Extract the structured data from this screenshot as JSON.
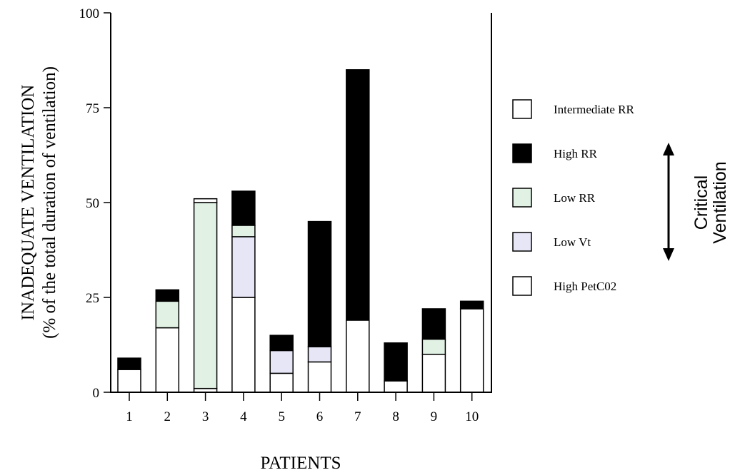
{
  "chart_data": {
    "type": "bar",
    "stacked": true,
    "categories": [
      "1",
      "2",
      "3",
      "4",
      "5",
      "6",
      "7",
      "8",
      "9",
      "10"
    ],
    "ylim": [
      0,
      100
    ],
    "yticks": [
      "0",
      "25",
      "50",
      "75",
      "100"
    ],
    "ylabel_lines": [
      "INADEQUATE VENTILATION",
      "(% of the total  duration of ventilation)"
    ],
    "xlabel": "PATIENTS",
    "grid": false,
    "legend_position": "right",
    "series": [
      {
        "name": "High PetC02",
        "color": "#ffffff",
        "values": [
          6,
          17,
          1,
          25,
          5,
          8,
          19,
          3,
          10,
          22
        ]
      },
      {
        "name": "Low Vt",
        "color": "#e6e6f7",
        "values": [
          0,
          0,
          0,
          16,
          6,
          4,
          0,
          0,
          0,
          0
        ]
      },
      {
        "name": "Low RR",
        "color": "#e1f2e4",
        "values": [
          0,
          7,
          49,
          3,
          0,
          0,
          0,
          0,
          4,
          0
        ]
      },
      {
        "name": "High RR",
        "color": "#000000",
        "values": [
          3,
          3,
          0,
          9,
          4,
          33,
          66,
          10,
          8,
          2
        ]
      },
      {
        "name": "Intermediate RR",
        "color": "#ffffff",
        "values": [
          0,
          0,
          1,
          0,
          0,
          0,
          0,
          0,
          0,
          0
        ]
      }
    ],
    "legend_order": [
      "Intermediate RR",
      "High RR",
      "Low RR",
      "Low Vt",
      "High PetC02"
    ],
    "annotation": {
      "lines": [
        "Critical",
        "Ventilation"
      ]
    }
  }
}
